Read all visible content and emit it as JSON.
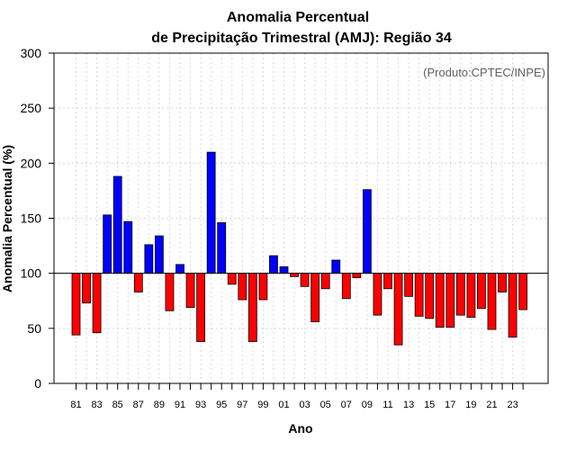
{
  "chart_data": {
    "type": "bar",
    "title_line1": "Anomalia Percentual",
    "title_line2": "de Precipitação Trimestral (AMJ): Região 34",
    "xlabel": "Ano",
    "ylabel": "Anomalia Percentual (%)",
    "annotation": "(Produto:CPTEC/INPE)",
    "ylim": [
      0,
      300
    ],
    "yticks": [
      0,
      50,
      100,
      150,
      200,
      250,
      300
    ],
    "baseline": 100,
    "grid": true,
    "colors": {
      "above": "#0000ff",
      "below": "#ff0000",
      "edge": "#000000",
      "grid": "#d8d8d8"
    },
    "xtick_labels": [
      "81",
      "83",
      "85",
      "87",
      "89",
      "91",
      "93",
      "95",
      "97",
      "99",
      "01",
      "03",
      "05",
      "07",
      "09",
      "11",
      "13",
      "15",
      "17",
      "19",
      "21",
      "23"
    ],
    "categories": [
      "81",
      "82",
      "83",
      "84",
      "85",
      "86",
      "87",
      "88",
      "89",
      "90",
      "91",
      "92",
      "93",
      "94",
      "95",
      "96",
      "97",
      "98",
      "99",
      "00",
      "01",
      "02",
      "03",
      "04",
      "05",
      "06",
      "07",
      "08",
      "09",
      "10",
      "11",
      "12",
      "13",
      "14",
      "15",
      "16",
      "17",
      "18",
      "19",
      "20",
      "21",
      "22",
      "23",
      "24"
    ],
    "values": [
      44,
      73,
      46,
      153,
      188,
      147,
      83,
      126,
      134,
      66,
      108,
      69,
      38,
      210,
      146,
      90,
      76,
      38,
      76,
      116,
      106,
      97,
      88,
      56,
      86,
      112,
      77,
      96,
      176,
      62,
      86,
      35,
      79,
      61,
      59,
      51,
      51,
      62,
      60,
      68,
      49,
      83,
      42,
      67
    ]
  }
}
